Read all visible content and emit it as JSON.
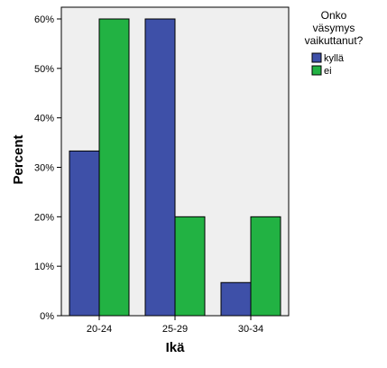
{
  "chart_data": {
    "type": "bar",
    "categories": [
      "20-24",
      "25-29",
      "30-34"
    ],
    "series": [
      {
        "name": "kyllä",
        "values": [
          33.3,
          60,
          6.7
        ],
        "color": "#3e50a8"
      },
      {
        "name": "ei",
        "values": [
          60,
          20,
          20
        ],
        "color": "#22b243"
      }
    ],
    "xlabel": "Ikä",
    "ylabel": "Percent",
    "ylim": [
      0,
      60
    ],
    "yticks": [
      "0%",
      "10%",
      "20%",
      "30%",
      "40%",
      "50%",
      "60%"
    ],
    "legend": {
      "title_lines": [
        "Onko",
        "väsymys",
        "vaikuttanut?"
      ],
      "placement": "right"
    },
    "plot_background": "#efefef",
    "grid": false
  }
}
